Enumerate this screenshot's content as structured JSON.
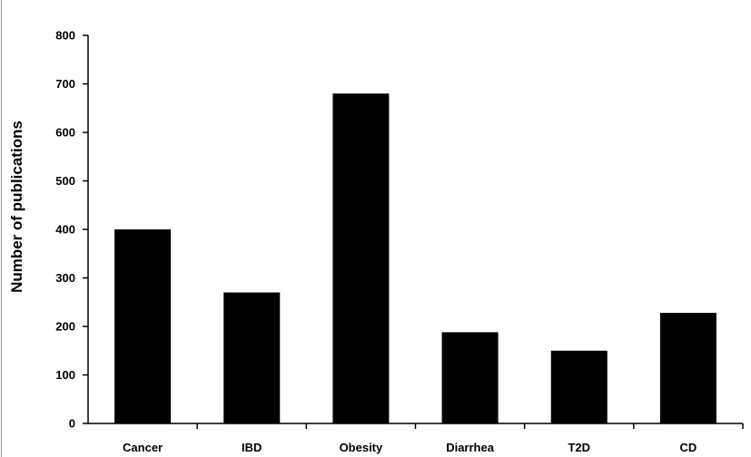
{
  "chart_data": {
    "type": "bar",
    "title": "",
    "xlabel": "",
    "ylabel": "Number of publications",
    "categories": [
      "Cancer",
      "IBD",
      "Obesity",
      "Diarrhea",
      "T2D",
      "CD"
    ],
    "values": [
      400,
      270,
      680,
      188,
      150,
      228
    ],
    "ylim": [
      0,
      800
    ],
    "yticks": [
      0,
      100,
      200,
      300,
      400,
      500,
      600,
      700,
      800
    ],
    "grid": false,
    "legend": "none",
    "bar_color": "#000000"
  }
}
